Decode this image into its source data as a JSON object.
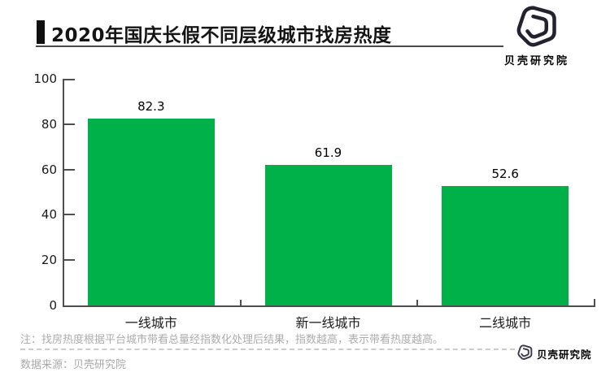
{
  "header": {
    "title": "2020年国庆长假不同层级城市找房热度"
  },
  "branding": {
    "header_logo": {
      "icon": "beike-shell-logo",
      "text": "贝壳研究院",
      "color": "#23222e"
    },
    "footer_logo": {
      "icon": "beike-shell-logo",
      "text": "贝壳研究院",
      "color": "#3b3a49"
    }
  },
  "chart_data": {
    "type": "bar",
    "title": "2020年国庆长假不同层级城市找房热度",
    "categories": [
      "一线城市",
      "新一线城市",
      "二线城市"
    ],
    "values": [
      82.3,
      61.9,
      52.6
    ],
    "value_labels": [
      "82.3",
      "61.9",
      "52.6"
    ],
    "xlabel": "",
    "ylabel": "",
    "ylim": [
      0,
      100
    ],
    "ytick_step": 20,
    "yticks": [
      0,
      20,
      40,
      60,
      80,
      100
    ],
    "grid": false,
    "legend": false,
    "bar_color": "#00b049",
    "axis_color": "#4f4f4f"
  },
  "footer": {
    "note": "注：找房热度根据平台城市带看总量经指数化处理后结果，指数越高，表示带看热度越高。",
    "source": "数据来源：贝壳研究院"
  }
}
